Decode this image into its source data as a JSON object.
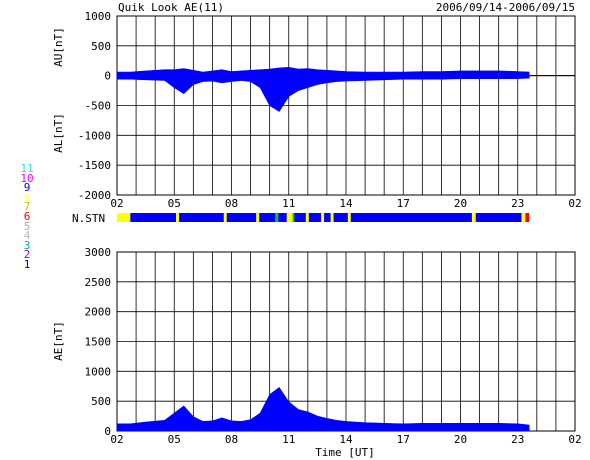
{
  "header": {
    "title": "Quik Look AE(11)",
    "date_range": "2006/09/14-2006/09/15"
  },
  "station_legend": [
    {
      "label": "11",
      "color": "#33dddd"
    },
    {
      "label": "10",
      "color": "#ff00ff"
    },
    {
      "label": "9",
      "color": "#0000ff"
    },
    {
      "label": "8",
      "color": "#ffff66"
    },
    {
      "label": "7",
      "color": "#c8c800"
    },
    {
      "label": "6",
      "color": "#ff0000"
    },
    {
      "label": "5",
      "color": "#aaaaaa"
    },
    {
      "label": "4",
      "color": "#bbbbbb"
    },
    {
      "label": "3",
      "color": "#00aaaa"
    },
    {
      "label": "2",
      "color": "#aa00aa"
    },
    {
      "label": "1",
      "color": "#0000aa"
    }
  ],
  "colors": {
    "fill_main": "#0000ff",
    "fill_gap": "#ffff00",
    "fill_alt": "#00cc00",
    "fill_end_red": "#ff0000",
    "fill_end_orange": "#ff8800",
    "grid": "#000000"
  },
  "chart_data": [
    {
      "type": "area",
      "ylabel_top": "AU[nT]",
      "ylabel_bottom": "AL[nT]",
      "ylim": [
        -2000,
        1000
      ],
      "yticks": [
        1000,
        500,
        0,
        -500,
        -1000,
        -1500,
        -2000
      ],
      "xtick_labels": [
        "02",
        "05",
        "08",
        "11",
        "14",
        "17",
        "20",
        "23",
        "02"
      ],
      "xlim_hours_from_02UT": [
        0,
        24
      ],
      "data_end_hour": 21.6,
      "au_series": {
        "x": [
          0,
          0.7,
          1.5,
          2.5,
          3.0,
          3.5,
          4.0,
          4.5,
          5.0,
          5.5,
          6.0,
          6.5,
          7.0,
          7.5,
          8.0,
          8.5,
          9.0,
          9.5,
          10.0,
          10.5,
          11.0,
          11.5,
          12.0,
          13.0,
          14.0,
          15.0,
          16.0,
          17.0,
          18.0,
          19.0,
          20.0,
          21.0,
          21.6
        ],
        "values": [
          60,
          60,
          80,
          100,
          100,
          120,
          90,
          60,
          80,
          100,
          70,
          80,
          90,
          100,
          110,
          130,
          140,
          110,
          120,
          100,
          90,
          80,
          70,
          60,
          60,
          60,
          70,
          70,
          80,
          80,
          80,
          70,
          60
        ]
      },
      "al_series": {
        "x": [
          0,
          0.7,
          1.5,
          2.5,
          3.0,
          3.5,
          4.0,
          4.5,
          5.0,
          5.5,
          6.0,
          6.5,
          7.0,
          7.5,
          8.0,
          8.5,
          9.0,
          9.5,
          10.0,
          10.5,
          11.0,
          11.5,
          12.0,
          13.0,
          14.0,
          15.0,
          16.0,
          17.0,
          18.0,
          19.0,
          20.0,
          21.0,
          21.6
        ],
        "values": [
          -60,
          -60,
          -70,
          -80,
          -200,
          -300,
          -150,
          -100,
          -90,
          -120,
          -100,
          -80,
          -100,
          -200,
          -500,
          -600,
          -350,
          -250,
          -200,
          -150,
          -120,
          -100,
          -90,
          -80,
          -70,
          -60,
          -60,
          -60,
          -50,
          -50,
          -50,
          -50,
          -40
        ]
      }
    },
    {
      "type": "bar",
      "ylabel": "N.STN",
      "segments": [
        {
          "from": 0,
          "to": 0.7,
          "color": "#ffff00"
        },
        {
          "from": 0.7,
          "to": 3.1,
          "color": "#0000ff"
        },
        {
          "from": 3.1,
          "to": 3.25,
          "color": "#ffff00"
        },
        {
          "from": 3.25,
          "to": 5.6,
          "color": "#0000ff"
        },
        {
          "from": 5.6,
          "to": 5.75,
          "color": "#ffff00"
        },
        {
          "from": 5.75,
          "to": 7.3,
          "color": "#0000ff"
        },
        {
          "from": 7.3,
          "to": 7.45,
          "color": "#ffff00"
        },
        {
          "from": 7.45,
          "to": 8.3,
          "color": "#0000ff"
        },
        {
          "from": 8.3,
          "to": 8.45,
          "color": "#00cc00"
        },
        {
          "from": 8.45,
          "to": 8.9,
          "color": "#0000ff"
        },
        {
          "from": 8.9,
          "to": 9.2,
          "color": "#ffff00"
        },
        {
          "from": 9.2,
          "to": 9.3,
          "color": "#00cc00"
        },
        {
          "from": 9.3,
          "to": 9.9,
          "color": "#0000ff"
        },
        {
          "from": 9.9,
          "to": 10.05,
          "color": "#ffff00"
        },
        {
          "from": 10.05,
          "to": 10.7,
          "color": "#0000ff"
        },
        {
          "from": 10.7,
          "to": 10.85,
          "color": "#ffff00"
        },
        {
          "from": 10.85,
          "to": 11.2,
          "color": "#0000ff"
        },
        {
          "from": 11.2,
          "to": 11.35,
          "color": "#ffff00"
        },
        {
          "from": 11.35,
          "to": 12.1,
          "color": "#0000ff"
        },
        {
          "from": 12.1,
          "to": 12.25,
          "color": "#ffff00"
        },
        {
          "from": 12.25,
          "to": 18.6,
          "color": "#0000ff"
        },
        {
          "from": 18.6,
          "to": 18.8,
          "color": "#ffff00"
        },
        {
          "from": 18.8,
          "to": 21.2,
          "color": "#0000ff"
        },
        {
          "from": 21.2,
          "to": 21.4,
          "color": "#ffff00"
        },
        {
          "from": 21.4,
          "to": 21.6,
          "color": "#ff0000"
        }
      ]
    },
    {
      "type": "area",
      "ylabel": "AE[nT]",
      "xlabel": "Time [UT]",
      "ylim": [
        0,
        3000
      ],
      "yticks": [
        3000,
        2500,
        2000,
        1500,
        1000,
        500,
        0
      ],
      "xtick_labels": [
        "02",
        "05",
        "08",
        "11",
        "14",
        "17",
        "20",
        "23",
        "02"
      ],
      "xlim_hours_from_02UT": [
        0,
        24
      ],
      "series": {
        "x": [
          0,
          0.7,
          1.5,
          2.5,
          3.0,
          3.5,
          4.0,
          4.5,
          5.0,
          5.5,
          6.0,
          6.5,
          7.0,
          7.5,
          8.0,
          8.5,
          9.0,
          9.5,
          10.0,
          10.5,
          11.0,
          11.5,
          12.0,
          13.0,
          14.0,
          15.0,
          16.0,
          17.0,
          18.0,
          19.0,
          20.0,
          21.0,
          21.6
        ],
        "values": [
          120,
          120,
          150,
          180,
          300,
          420,
          240,
          160,
          170,
          220,
          170,
          160,
          190,
          300,
          610,
          730,
          490,
          360,
          320,
          250,
          210,
          180,
          160,
          140,
          130,
          120,
          130,
          130,
          130,
          130,
          130,
          120,
          100
        ]
      }
    }
  ]
}
